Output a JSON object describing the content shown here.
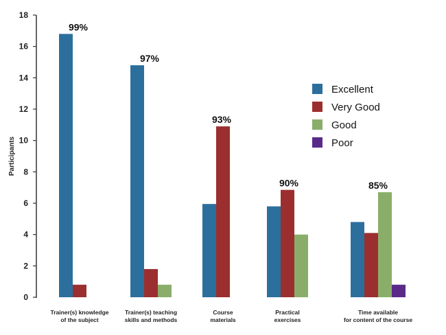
{
  "chart_data": {
    "type": "bar",
    "ylabel": "Participants",
    "xlabel": "",
    "title": "",
    "ylim": [
      0,
      18
    ],
    "yticks": [
      0,
      2,
      4,
      6,
      8,
      10,
      12,
      14,
      16,
      18
    ],
    "categories": [
      [
        "Trainer(s) knowledge",
        "of the subject"
      ],
      [
        "Trainer(s) teaching",
        "skills and methods"
      ],
      [
        "Course",
        "materials"
      ],
      [
        "Practical",
        "exercises"
      ],
      [
        "Time available",
        "for content of the course"
      ]
    ],
    "series": [
      {
        "name": "Excellent",
        "color": "#2d6f9c",
        "values": [
          16.8,
          14.8,
          5.95,
          5.8,
          4.8
        ]
      },
      {
        "name": "Very Good",
        "color": "#9b2f2f",
        "values": [
          0.8,
          1.8,
          10.9,
          6.85,
          4.1
        ]
      },
      {
        "name": "Good",
        "color": "#8aae6a",
        "values": [
          0,
          0.8,
          0,
          4.0,
          6.7
        ]
      },
      {
        "name": "Poor",
        "color": "#5a2a8a",
        "values": [
          0,
          0,
          0,
          0,
          0.8
        ]
      }
    ],
    "annotations": [
      "99%",
      "97%",
      "93%",
      "90%",
      "85%"
    ],
    "legend_position": "right",
    "grid": false
  }
}
